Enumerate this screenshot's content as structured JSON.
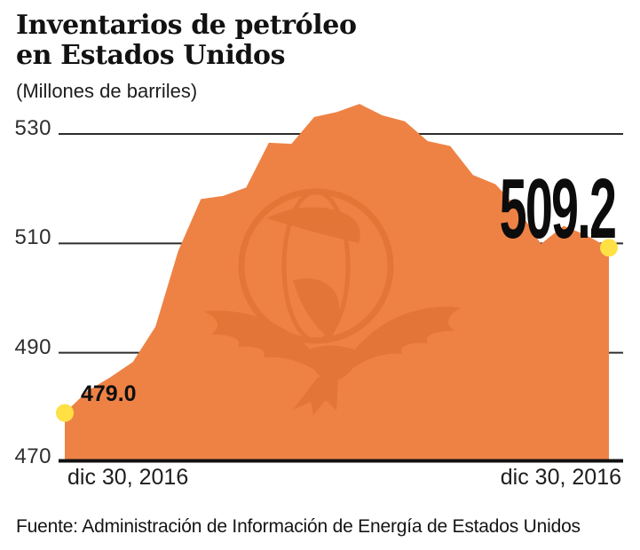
{
  "header": {
    "title_lines": [
      "Inventarios de petróleo",
      "en Estados Unidos"
    ],
    "subtitle": "(Millones de barriles)"
  },
  "source": {
    "text": "Fuente: Administración de Información de Energía de Estados Unidos"
  },
  "chart_data": {
    "type": "area",
    "title": "Inventarios de petróleo en Estados Unidos",
    "units_label": "(Millones de barriles)",
    "xlabel": "",
    "ylabel": "Millones de barriles",
    "y_ticks": [
      470,
      490,
      510,
      530
    ],
    "ylim": [
      470,
      537
    ],
    "grid": true,
    "legend": false,
    "x_tick_labels": [
      "dic 30, 2016",
      "dic 30, 2016"
    ],
    "values": [
      479.0,
      483.0,
      485.5,
      488.3,
      494.8,
      508.6,
      518.1,
      518.7,
      520.2,
      528.4,
      528.2,
      533.1,
      534.0,
      535.5,
      533.4,
      532.3,
      528.7,
      527.8,
      522.5,
      520.8,
      516.3,
      509.9,
      513.2,
      511.5,
      509.2
    ],
    "start_label": "479.0",
    "end_label": "509.2",
    "area_color": "#EE8245",
    "watermark_color": "#CC5E1E",
    "marker_color": "#FFE045",
    "grid_color": "#2d2d2d",
    "baseline_color": "#111111"
  }
}
